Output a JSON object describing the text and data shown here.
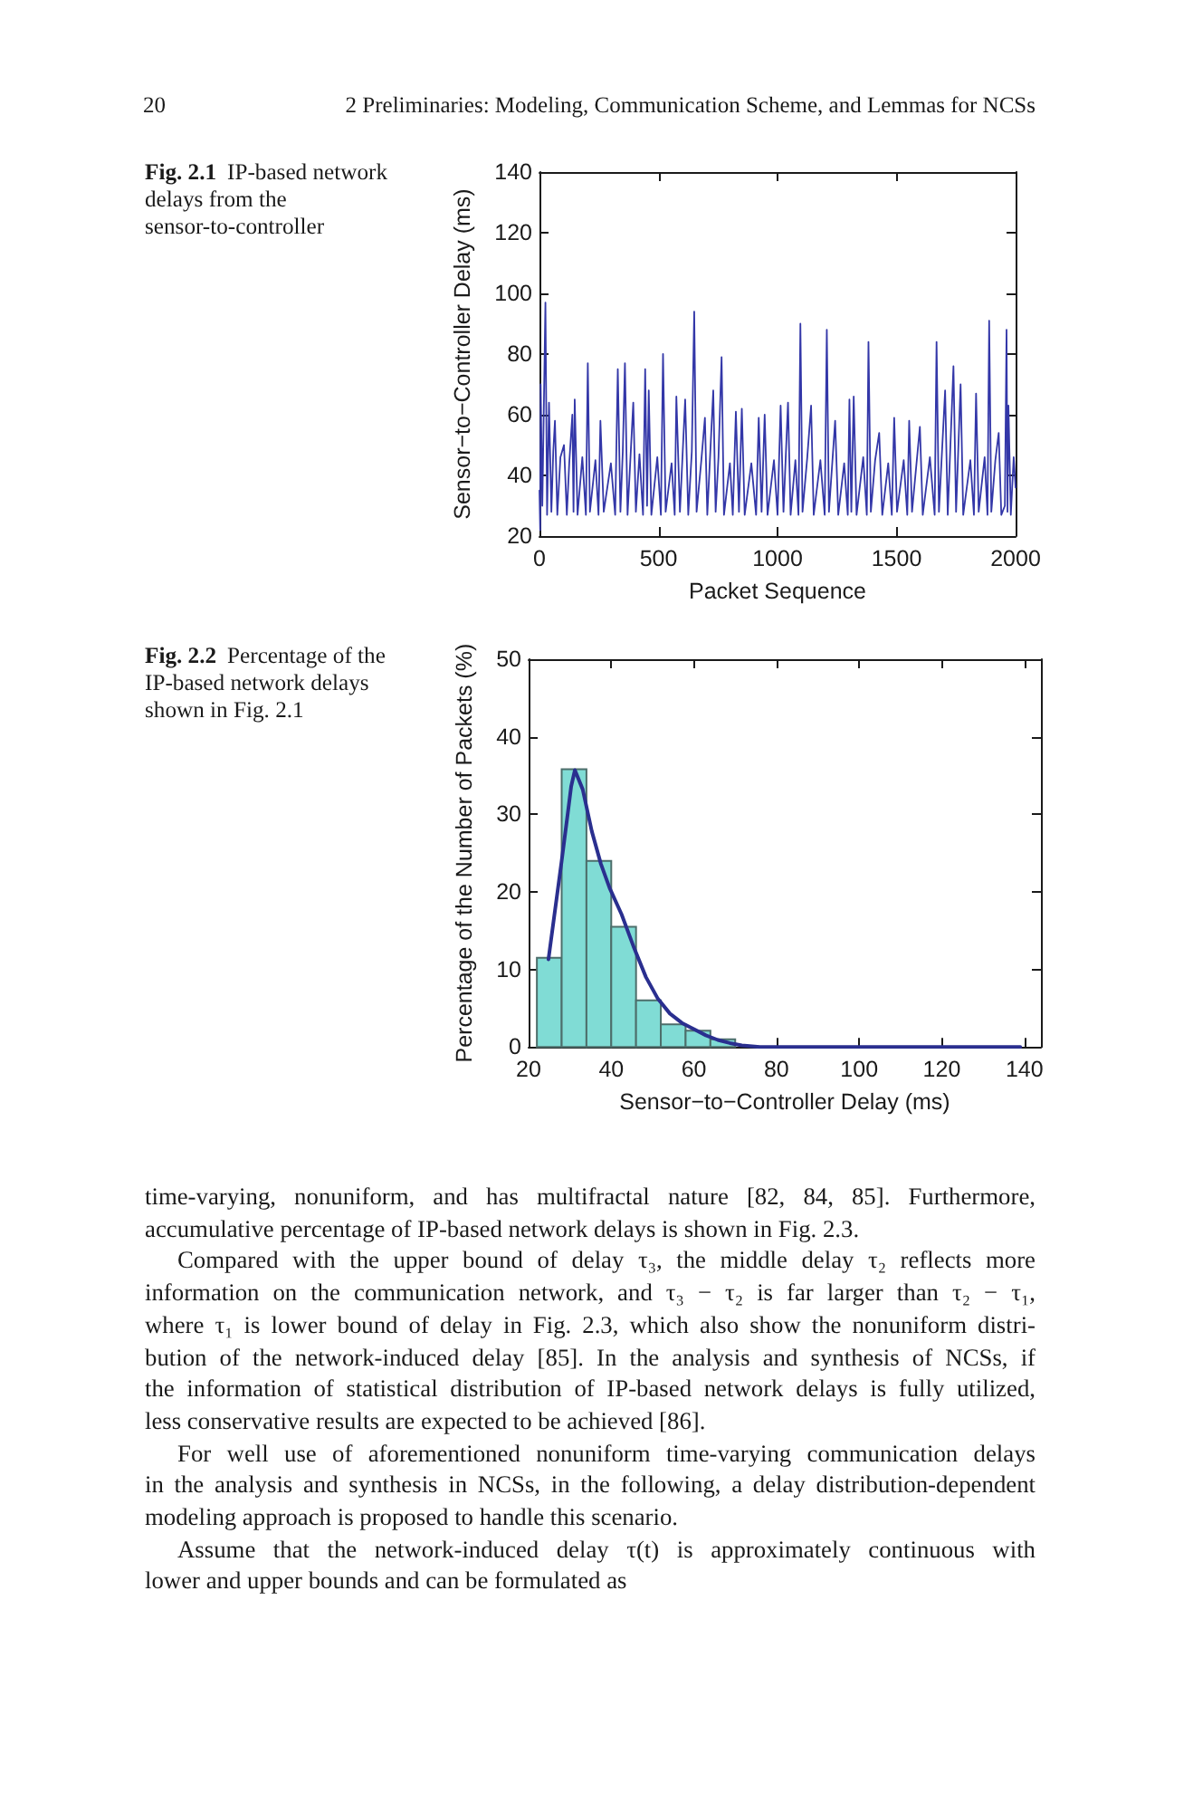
{
  "chart_data": [
    {
      "type": "line",
      "xlabel": "Packet Sequence",
      "ylabel": "Sensor−to−Controller Delay (ms)",
      "x": [
        0,
        3,
        5,
        12,
        25,
        32,
        40,
        50,
        58,
        65,
        75,
        88,
        103,
        115,
        125,
        138,
        143,
        148,
        160,
        180,
        195,
        203,
        212,
        235,
        248,
        256,
        270,
        300,
        318,
        329,
        340,
        350,
        359,
        370,
        394,
        405,
        420,
        435,
        444,
        452,
        459,
        470,
        495,
        510,
        519,
        530,
        555,
        568,
        575,
        590,
        612,
        625,
        640,
        650,
        660,
        680,
        695,
        705,
        730,
        740,
        752,
        765,
        775,
        800,
        812,
        825,
        838,
        850,
        862,
        890,
        910,
        921,
        933,
        946,
        958,
        985,
        1000,
        1013,
        1025,
        1044,
        1055,
        1075,
        1088,
        1096,
        1105,
        1125,
        1141,
        1152,
        1180,
        1198,
        1207,
        1216,
        1242,
        1255,
        1280,
        1295,
        1302,
        1310,
        1320,
        1332,
        1360,
        1375,
        1382,
        1392,
        1410,
        1427,
        1440,
        1465,
        1480,
        1490,
        1502,
        1530,
        1545,
        1553,
        1565,
        1598,
        1610,
        1640,
        1660,
        1668,
        1678,
        1704,
        1715,
        1739,
        1750,
        1769,
        1780,
        1810,
        1825,
        1834,
        1845,
        1870,
        1882,
        1889,
        1898,
        1915,
        1929,
        1940,
        1955,
        1962,
        1966,
        1970,
        1980,
        1992,
        2000
      ],
      "series": [
        {
          "color": "#3337a8",
          "values": [
            35,
            22,
            70,
            30,
            97,
            27,
            64,
            28,
            48,
            58,
            27,
            46,
            50,
            27,
            44,
            60,
            28,
            65,
            27,
            46,
            27,
            77,
            28,
            45,
            27,
            58,
            28,
            44,
            27,
            75,
            28,
            48,
            77,
            27,
            64,
            28,
            47,
            27,
            75,
            30,
            68,
            27,
            46,
            27,
            80,
            28,
            44,
            27,
            66,
            28,
            65,
            27,
            48,
            94,
            28,
            45,
            59,
            27,
            68,
            28,
            46,
            79,
            27,
            44,
            27,
            61,
            28,
            62,
            27,
            44,
            27,
            59,
            28,
            60,
            27,
            45,
            27,
            63,
            28,
            64,
            27,
            45,
            27,
            90,
            28,
            46,
            63,
            27,
            45,
            27,
            88,
            28,
            58,
            27,
            44,
            27,
            65,
            28,
            66,
            27,
            46,
            27,
            84,
            28,
            45,
            54,
            27,
            44,
            27,
            59,
            28,
            45,
            27,
            58,
            28,
            56,
            27,
            46,
            27,
            84,
            28,
            68,
            27,
            76,
            28,
            70,
            27,
            45,
            27,
            67,
            28,
            46,
            27,
            91,
            28,
            45,
            54,
            27,
            30,
            88,
            28,
            63,
            27,
            46,
            36
          ]
        }
      ],
      "xlim": [
        0,
        2000
      ],
      "ylim": [
        20,
        140
      ],
      "xticks": [
        0,
        500,
        1000,
        1500,
        2000
      ],
      "yticks": [
        20,
        40,
        60,
        80,
        100,
        120,
        140
      ],
      "annotations": [
        "20",
        "2 Preliminaries: Modeling, Communication Scheme, and Lemmas for NCSs",
        "Fig. 2.1 IP-based network\ndelays from the\nsensor-to-controller"
      ]
    },
    {
      "type": "histogram",
      "xlabel": "Sensor−to−Controller Delay (ms)",
      "ylabel": "Percentage of the Number of Packets (%)",
      "series": [
        {
          "type": "histogram",
          "color": "#80dcd5",
          "bins": [
            22,
            28,
            34,
            40,
            46,
            52,
            58,
            64,
            70
          ],
          "values": [
            11.5,
            35.8,
            24.0,
            15.5,
            6.0,
            2.9,
            2.1,
            1.0
          ]
        },
        {
          "type": "line",
          "color": "#2a2f8f",
          "x": [
            24.8,
            28,
            29.5,
            30.3,
            31.2,
            33.1,
            35.3,
            37.5,
            39.6,
            42.5,
            45.5,
            48.4,
            51.3,
            54.2,
            57.1,
            60,
            62.9,
            65.8,
            68.7,
            71.6,
            76,
            90,
            110,
            139
          ],
          "values": [
            11.3,
            24,
            30.2,
            33.6,
            35.7,
            33.2,
            27.8,
            23.6,
            20.5,
            17.1,
            12.8,
            9,
            6.2,
            4.3,
            3.1,
            2.3,
            1.5,
            0.9,
            0.5,
            0.2,
            0,
            0,
            0,
            0
          ]
        }
      ],
      "xlim": [
        20,
        144
      ],
      "ylim": [
        0,
        50
      ],
      "xticks": [
        20,
        40,
        60,
        80,
        100,
        120,
        140
      ],
      "yticks": [
        0,
        10,
        20,
        30,
        40,
        50
      ],
      "annotations": [
        "Fig. 2.2 Percentage of the\nIP-based network delays\nshown in Fig. 2.1",
        "time-varying, nonuniform, and has multifractal nature [82, 84, 85]. Furthermore,\naccumulative percentage of IP-based network delays is shown in Fig. 2.3.",
        "Compared with the upper bound of delay τ₃, the middle delay τ₂ reflects more\ninformation on the communication network, and τ₃ − τ₂ is far larger than τ₂ − τ₁,\nwhere τ₁ is lower bound of delay in Fig. 2.3, which also show the nonuniform distri-\nbution of the network-induced delay [85]. In the analysis and synthesis of NCSs, if\nthe information of statistical distribution of IP-based network delays is fully utilized,\nless conservative results are expected to be achieved [86].",
        "For well use of aforementioned nonuniform time-varying communication delays\nin the analysis and synthesis in NCSs, in the following, a delay distribution-dependent\nmodeling approach is proposed to handle this scenario.",
        "Assume that the network-induced delay τ(t) is approximately continuous with\nlower and upper bounds and can be formulated as"
      ]
    }
  ]
}
